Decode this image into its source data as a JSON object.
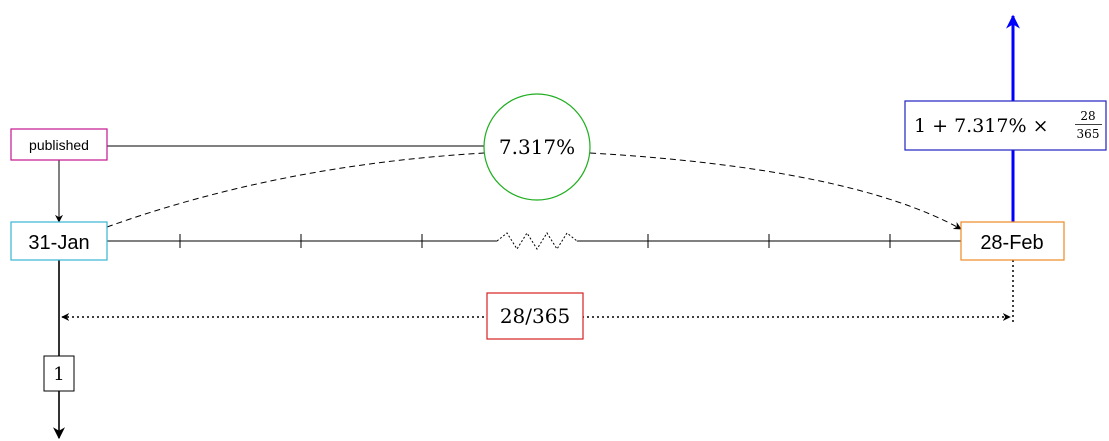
{
  "published": {
    "label": "published",
    "color": "#c4148f"
  },
  "start_date": {
    "label": "31-Jan",
    "color": "#3ab5d6"
  },
  "end_date": {
    "label": "28-Feb",
    "color": "#ee8a25"
  },
  "rate": {
    "label": "7.317%",
    "color": "#1fae1f"
  },
  "day_count": {
    "label": "28/365",
    "color": "#d62020"
  },
  "notional": {
    "label": "1"
  },
  "payoff": {
    "prefix": "1 + 7.317% ×",
    "numerator": "28",
    "denominator": "365",
    "color": "#2020c0",
    "arrow_color": "#0000ff"
  }
}
